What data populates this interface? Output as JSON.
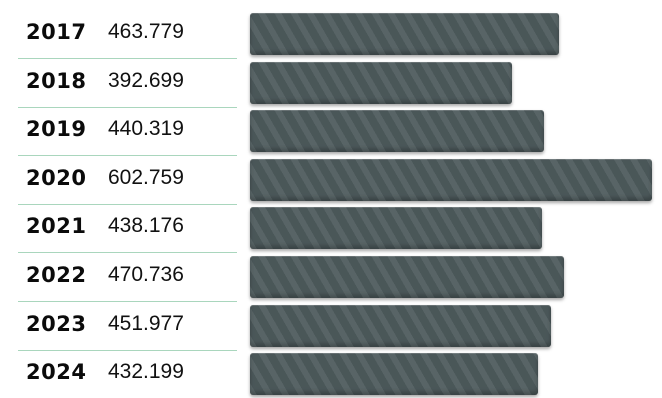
{
  "chart_data": {
    "type": "bar",
    "orientation": "horizontal",
    "categories": [
      "2017",
      "2018",
      "2019",
      "2020",
      "2021",
      "2022",
      "2023",
      "2024"
    ],
    "values": [
      463779,
      392699,
      440319,
      602759,
      438176,
      470736,
      451977,
      432199
    ],
    "value_labels": [
      "463.779",
      "392.699",
      "440.319",
      "602.759",
      "438.176",
      "470.736",
      "451.977",
      "432.199"
    ],
    "title": "",
    "xlabel": "",
    "ylabel": "",
    "grid": false,
    "legend": "none",
    "colors": {
      "bar": "#4f5c5e",
      "separator": "#a9d6bd",
      "text": "#111111"
    }
  }
}
